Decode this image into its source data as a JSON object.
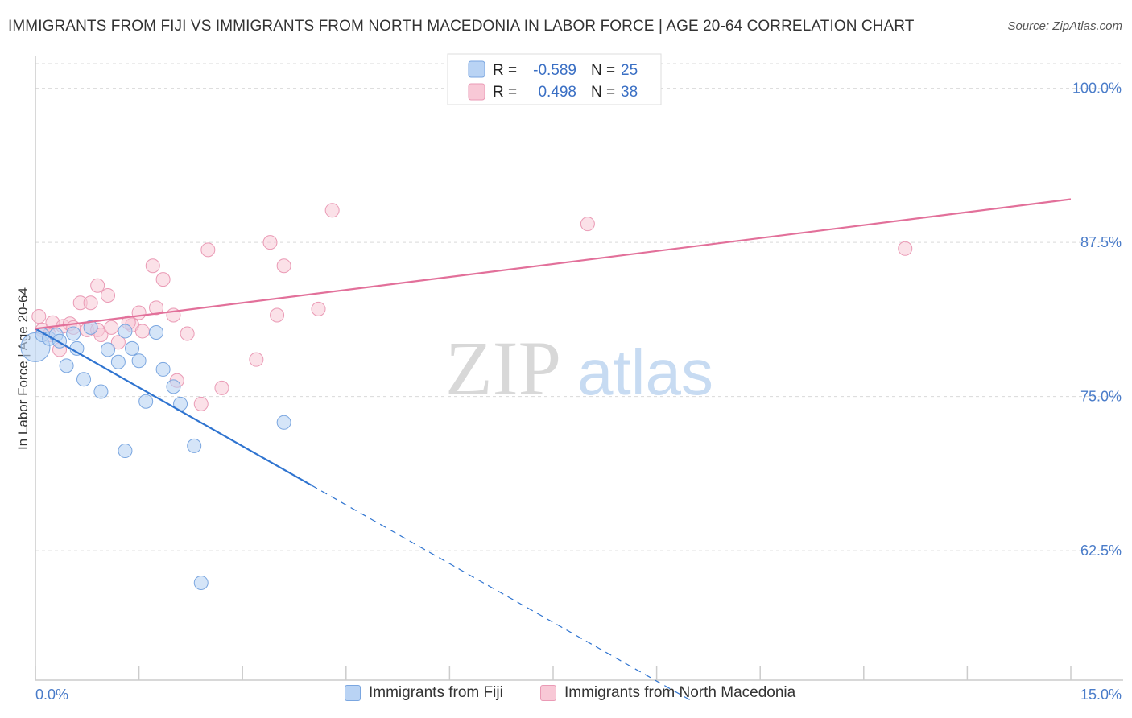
{
  "title": "IMMIGRANTS FROM FIJI VS IMMIGRANTS FROM NORTH MACEDONIA IN LABOR FORCE | AGE 20-64 CORRELATION CHART",
  "source": "Source: ZipAtlas.com",
  "watermark": {
    "zip": "ZIP",
    "atlas": "atlas"
  },
  "legend_top": {
    "rows": [
      {
        "r_label": "R =",
        "r_value": "-0.589",
        "n_label": "N =",
        "n_value": "25"
      },
      {
        "r_label": "R =",
        "r_value": "0.498",
        "n_label": "N =",
        "n_value": "38"
      }
    ]
  },
  "legend_bottom": {
    "fiji": "Immigrants from Fiji",
    "macedonia": "Immigrants from North Macedonia"
  },
  "colors": {
    "fiji_fill": "#b9d3f4",
    "fiji_stroke": "#7aa6e0",
    "fiji_line": "#2f74d0",
    "mac_fill": "#f8c8d6",
    "mac_stroke": "#ea9ab5",
    "mac_line": "#e2709a",
    "tick": "#4a7cc9",
    "grid": "#d9d9d9"
  },
  "chart_data": {
    "type": "scatter",
    "title": "IMMIGRANTS FROM FIJI VS IMMIGRANTS FROM NORTH MACEDONIA IN LABOR FORCE | AGE 20-64 CORRELATION CHART",
    "xlabel": "",
    "ylabel": "In Labor Force | Age 20-64",
    "xlim": [
      0,
      15
    ],
    "ylim": [
      52,
      102
    ],
    "x_tick_labels": [
      {
        "value": 0,
        "label": "0.0%"
      },
      {
        "value": 15,
        "label": "15.0%"
      }
    ],
    "y_tick_labels": [
      {
        "value": 100,
        "label": "100.0%"
      },
      {
        "value": 87.5,
        "label": "87.5%"
      },
      {
        "value": 75,
        "label": "75.0%"
      },
      {
        "value": 62.5,
        "label": "62.5%"
      }
    ],
    "series": [
      {
        "name": "Immigrants from Fiji",
        "r": -0.589,
        "n": 25,
        "points": [
          [
            0.0,
            79.0
          ],
          [
            0.1,
            80.0
          ],
          [
            0.2,
            79.7
          ],
          [
            0.3,
            80.0
          ],
          [
            0.35,
            79.5
          ],
          [
            0.45,
            77.5
          ],
          [
            0.6,
            78.9
          ],
          [
            0.7,
            76.4
          ],
          [
            0.8,
            80.6
          ],
          [
            0.95,
            75.4
          ],
          [
            1.05,
            78.8
          ],
          [
            1.2,
            77.8
          ],
          [
            1.3,
            80.3
          ],
          [
            1.4,
            78.9
          ],
          [
            1.5,
            77.9
          ],
          [
            1.6,
            74.6
          ],
          [
            1.75,
            80.2
          ],
          [
            1.85,
            77.2
          ],
          [
            2.0,
            75.8
          ],
          [
            2.1,
            74.4
          ],
          [
            2.3,
            71.0
          ],
          [
            1.3,
            70.6
          ],
          [
            3.6,
            72.9
          ],
          [
            2.4,
            59.9
          ],
          [
            0.55,
            80.1
          ]
        ],
        "trend": {
          "x0": 0.0,
          "y0": 80.5,
          "x1": 4.0,
          "y1": 67.8,
          "dash_x1": 9.5
        }
      },
      {
        "name": "Immigrants from North Macedonia",
        "r": 0.498,
        "n": 38,
        "points": [
          [
            0.05,
            81.5
          ],
          [
            0.1,
            80.4
          ],
          [
            0.2,
            80.0
          ],
          [
            0.25,
            81.0
          ],
          [
            0.35,
            78.8
          ],
          [
            0.4,
            80.7
          ],
          [
            0.5,
            80.9
          ],
          [
            0.55,
            80.6
          ],
          [
            0.65,
            82.6
          ],
          [
            0.75,
            80.4
          ],
          [
            0.8,
            82.6
          ],
          [
            0.9,
            80.4
          ],
          [
            0.95,
            80.0
          ],
          [
            1.05,
            83.2
          ],
          [
            1.1,
            80.6
          ],
          [
            1.2,
            79.4
          ],
          [
            1.4,
            80.8
          ],
          [
            1.5,
            81.8
          ],
          [
            1.55,
            80.3
          ],
          [
            1.75,
            82.2
          ],
          [
            1.85,
            84.5
          ],
          [
            2.0,
            81.6
          ],
          [
            2.05,
            76.3
          ],
          [
            2.2,
            80.1
          ],
          [
            2.4,
            74.4
          ],
          [
            2.5,
            86.9
          ],
          [
            2.7,
            75.7
          ],
          [
            3.6,
            85.6
          ],
          [
            1.7,
            85.6
          ],
          [
            3.5,
            81.6
          ],
          [
            3.2,
            78.0
          ],
          [
            3.4,
            87.5
          ],
          [
            4.1,
            82.1
          ],
          [
            4.3,
            90.1
          ],
          [
            0.9,
            84.0
          ],
          [
            8.0,
            89.0
          ],
          [
            12.6,
            87.0
          ],
          [
            1.35,
            81.0
          ]
        ],
        "trend": {
          "x0": 0.0,
          "y0": 80.5,
          "x1": 15.0,
          "y1": 91.0
        }
      }
    ]
  }
}
